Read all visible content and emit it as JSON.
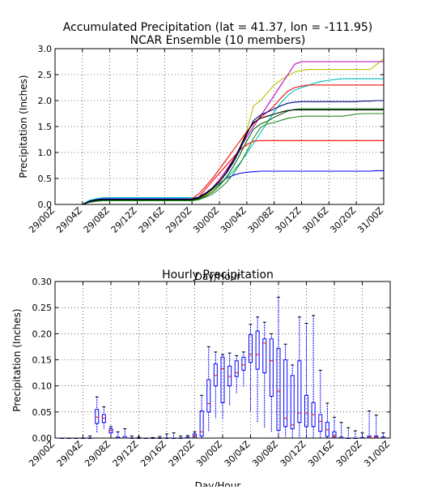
{
  "colors": {
    "background": "#ffffff",
    "frame": "#000000",
    "grid": "#000000",
    "box": "#0000ff",
    "median": "#ff0000"
  },
  "chart_data": [
    {
      "type": "line",
      "title": "Accumulated Precipitation (lat = 41.37, lon = -111.95)",
      "subtitle": "NCAR Ensemble (10 members)",
      "xlabel": "Day/Hour",
      "ylabel": "Precipitation (Inches)",
      "xlim": [
        0,
        48
      ],
      "ylim": [
        0,
        3.0
      ],
      "yticks": [
        "0.0",
        "0.5",
        "1.0",
        "1.5",
        "2.0",
        "2.5",
        "3.0"
      ],
      "xticks": [
        "29/00Z",
        "29/04Z",
        "29/08Z",
        "29/12Z",
        "29/16Z",
        "29/20Z",
        "30/00Z",
        "30/04Z",
        "30/08Z",
        "30/12Z",
        "30/16Z",
        "30/20Z",
        "31/00Z"
      ],
      "x": [
        0,
        3,
        4,
        5,
        6,
        7,
        8,
        9,
        10,
        11,
        12,
        13,
        14,
        15,
        16,
        17,
        18,
        19,
        20,
        21,
        22,
        23,
        24,
        25,
        26,
        27,
        28,
        29,
        30,
        31,
        32,
        33,
        34,
        35,
        36,
        37,
        38,
        39,
        40,
        41,
        42,
        43,
        44,
        45,
        46,
        47,
        48
      ],
      "grid": true,
      "series": [
        {
          "color": "#0000ff",
          "values": [
            0,
            0,
            0,
            0.07,
            0.1,
            0.11,
            0.11,
            0.11,
            0.11,
            0.11,
            0.11,
            0.11,
            0.11,
            0.11,
            0.11,
            0.11,
            0.11,
            0.11,
            0.11,
            0.14,
            0.22,
            0.3,
            0.4,
            0.5,
            0.56,
            0.6,
            0.62,
            0.63,
            0.64,
            0.64,
            0.64,
            0.64,
            0.64,
            0.64,
            0.64,
            0.64,
            0.64,
            0.64,
            0.64,
            0.64,
            0.64,
            0.64,
            0.64,
            0.64,
            0.64,
            0.65,
            0.65
          ]
        },
        {
          "color": "#00bfbf",
          "values": [
            0,
            0,
            0,
            0.08,
            0.11,
            0.13,
            0.13,
            0.13,
            0.13,
            0.13,
            0.13,
            0.13,
            0.13,
            0.13,
            0.13,
            0.13,
            0.13,
            0.13,
            0.13,
            0.14,
            0.2,
            0.28,
            0.38,
            0.5,
            0.64,
            0.8,
            0.98,
            1.18,
            1.38,
            1.58,
            1.78,
            1.96,
            2.1,
            2.2,
            2.25,
            2.29,
            2.34,
            2.37,
            2.39,
            2.41,
            2.42,
            2.42,
            2.42,
            2.42,
            2.42,
            2.42,
            2.42
          ]
        },
        {
          "color": "#bfbf00",
          "values": [
            0,
            0,
            0,
            0.05,
            0.08,
            0.09,
            0.09,
            0.09,
            0.09,
            0.09,
            0.09,
            0.09,
            0.09,
            0.09,
            0.09,
            0.09,
            0.09,
            0.09,
            0.09,
            0.12,
            0.18,
            0.28,
            0.42,
            0.6,
            0.82,
            1.1,
            1.42,
            1.9,
            2.0,
            2.15,
            2.3,
            2.4,
            2.48,
            2.55,
            2.58,
            2.6,
            2.6,
            2.6,
            2.6,
            2.6,
            2.6,
            2.6,
            2.6,
            2.6,
            2.6,
            2.7,
            2.8
          ]
        },
        {
          "color": "#bf00bf",
          "values": [
            0,
            0,
            0,
            0.05,
            0.08,
            0.09,
            0.09,
            0.09,
            0.09,
            0.09,
            0.09,
            0.09,
            0.09,
            0.09,
            0.09,
            0.09,
            0.09,
            0.09,
            0.1,
            0.12,
            0.2,
            0.32,
            0.48,
            0.66,
            0.86,
            1.08,
            1.3,
            1.5,
            1.7,
            1.9,
            2.1,
            2.3,
            2.5,
            2.7,
            2.75,
            2.75,
            2.75,
            2.75,
            2.75,
            2.75,
            2.75,
            2.75,
            2.75,
            2.75,
            2.75,
            2.75,
            2.75
          ]
        },
        {
          "color": "#ff0000",
          "values": [
            0,
            0,
            0,
            0.05,
            0.08,
            0.09,
            0.09,
            0.09,
            0.09,
            0.09,
            0.09,
            0.09,
            0.09,
            0.09,
            0.09,
            0.09,
            0.09,
            0.09,
            0.09,
            0.14,
            0.3,
            0.45,
            0.6,
            0.75,
            0.9,
            1.05,
            1.15,
            1.22,
            1.23,
            1.23,
            1.23,
            1.23,
            1.23,
            1.23,
            1.23,
            1.23,
            1.23,
            1.23,
            1.23,
            1.23,
            1.23,
            1.23,
            1.23,
            1.23,
            1.23,
            1.23,
            1.23
          ]
        },
        {
          "color": "#e81010",
          "values": [
            0,
            0,
            0,
            0.06,
            0.09,
            0.1,
            0.1,
            0.1,
            0.1,
            0.1,
            0.1,
            0.1,
            0.1,
            0.1,
            0.1,
            0.1,
            0.1,
            0.1,
            0.11,
            0.2,
            0.35,
            0.5,
            0.68,
            0.86,
            1.04,
            1.22,
            1.4,
            1.56,
            1.68,
            1.78,
            1.9,
            2.05,
            2.18,
            2.25,
            2.28,
            2.3,
            2.3,
            2.3,
            2.3,
            2.3,
            2.3,
            2.3,
            2.3,
            2.3,
            2.3,
            2.3,
            2.3
          ]
        },
        {
          "color": "#006400",
          "values": [
            0,
            0,
            0,
            0.05,
            0.07,
            0.08,
            0.08,
            0.08,
            0.08,
            0.08,
            0.08,
            0.08,
            0.08,
            0.08,
            0.08,
            0.08,
            0.08,
            0.08,
            0.08,
            0.1,
            0.16,
            0.24,
            0.36,
            0.52,
            0.72,
            0.96,
            1.22,
            1.45,
            1.55,
            1.6,
            1.68,
            1.74,
            1.8,
            1.83,
            1.84,
            1.84,
            1.84,
            1.84,
            1.84,
            1.84,
            1.84,
            1.84,
            1.84,
            1.84,
            1.84,
            1.84,
            1.84
          ]
        },
        {
          "color": "#228b22",
          "values": [
            0,
            0,
            0,
            0.04,
            0.06,
            0.07,
            0.07,
            0.07,
            0.07,
            0.07,
            0.07,
            0.07,
            0.07,
            0.07,
            0.07,
            0.07,
            0.07,
            0.07,
            0.07,
            0.09,
            0.14,
            0.2,
            0.3,
            0.42,
            0.58,
            0.78,
            1.02,
            1.28,
            1.48,
            1.55,
            1.58,
            1.62,
            1.66,
            1.68,
            1.7,
            1.7,
            1.7,
            1.7,
            1.7,
            1.7,
            1.7,
            1.72,
            1.74,
            1.75,
            1.75,
            1.75,
            1.75
          ]
        },
        {
          "color": "#000080",
          "values": [
            0,
            0,
            0,
            0.06,
            0.09,
            0.1,
            0.1,
            0.1,
            0.1,
            0.1,
            0.1,
            0.1,
            0.1,
            0.1,
            0.1,
            0.1,
            0.1,
            0.1,
            0.1,
            0.14,
            0.22,
            0.32,
            0.44,
            0.6,
            0.8,
            1.05,
            1.35,
            1.62,
            1.72,
            1.78,
            1.84,
            1.9,
            1.95,
            1.97,
            1.98,
            1.98,
            1.98,
            1.98,
            1.98,
            1.98,
            1.98,
            1.98,
            1.98,
            1.99,
            1.99,
            2.0,
            2.0
          ]
        },
        {
          "color": "#000000",
          "values": [
            0,
            0,
            0,
            0.05,
            0.08,
            0.09,
            0.09,
            0.09,
            0.09,
            0.09,
            0.09,
            0.09,
            0.09,
            0.09,
            0.09,
            0.09,
            0.09,
            0.09,
            0.09,
            0.12,
            0.2,
            0.3,
            0.44,
            0.62,
            0.84,
            1.1,
            1.38,
            1.58,
            1.66,
            1.7,
            1.74,
            1.78,
            1.81,
            1.82,
            1.82,
            1.82,
            1.82,
            1.82,
            1.82,
            1.82,
            1.82,
            1.82,
            1.82,
            1.82,
            1.82,
            1.82,
            1.82
          ]
        }
      ]
    },
    {
      "type": "box",
      "title": "Hourly Precipitation",
      "xlabel": "Day/Hour",
      "ylabel": "Precipitation (Inches)",
      "xlim": [
        0,
        48
      ],
      "ylim": [
        0,
        0.3
      ],
      "yticks": [
        "0.00",
        "0.05",
        "0.10",
        "0.15",
        "0.20",
        "0.25",
        "0.30"
      ],
      "xticks": [
        "29/00Z",
        "29/04Z",
        "29/08Z",
        "29/12Z",
        "29/16Z",
        "29/20Z",
        "30/00Z",
        "30/04Z",
        "30/08Z",
        "30/12Z",
        "30/16Z",
        "30/20Z",
        "31/00Z"
      ],
      "grid": true,
      "boxes": [
        {
          "x": 1,
          "min": 0,
          "q1": 0,
          "median": 0,
          "q3": 0,
          "max": 0
        },
        {
          "x": 2,
          "min": 0,
          "q1": 0,
          "median": 0,
          "q3": 0,
          "max": 0
        },
        {
          "x": 3,
          "min": 0,
          "q1": 0,
          "median": 0,
          "q3": 0,
          "max": 0
        },
        {
          "x": 4,
          "min": 0,
          "q1": 0,
          "median": 0,
          "q3": 0,
          "max": 0
        },
        {
          "x": 5,
          "min": 0,
          "q1": 0,
          "median": 0,
          "q3": 0,
          "max": 0.004
        },
        {
          "x": 6,
          "min": 0.01,
          "q1": 0.028,
          "median": 0.04,
          "q3": 0.055,
          "max": 0.079
        },
        {
          "x": 7,
          "min": 0.018,
          "q1": 0.03,
          "median": 0.038,
          "q3": 0.045,
          "max": 0.06
        },
        {
          "x": 8,
          "min": 0.006,
          "q1": 0.01,
          "median": 0.015,
          "q3": 0.018,
          "max": 0.022
        },
        {
          "x": 9,
          "min": 0,
          "q1": 0,
          "median": 0,
          "q3": 0.002,
          "max": 0.012
        },
        {
          "x": 10,
          "min": 0,
          "q1": 0,
          "median": 0,
          "q3": 0.003,
          "max": 0.018
        },
        {
          "x": 11,
          "min": 0,
          "q1": 0,
          "median": 0,
          "q3": 0,
          "max": 0.004
        },
        {
          "x": 12,
          "min": 0,
          "q1": 0,
          "median": 0,
          "q3": 0,
          "max": 0.002
        },
        {
          "x": 13,
          "min": 0,
          "q1": 0,
          "median": 0,
          "q3": 0,
          "max": 0
        },
        {
          "x": 14,
          "min": 0,
          "q1": 0,
          "median": 0,
          "q3": 0,
          "max": 0.001
        },
        {
          "x": 15,
          "min": 0,
          "q1": 0,
          "median": 0,
          "q3": 0,
          "max": 0.003
        },
        {
          "x": 16,
          "min": 0,
          "q1": 0,
          "median": 0,
          "q3": 0,
          "max": 0.008
        },
        {
          "x": 17,
          "min": 0,
          "q1": 0,
          "median": 0,
          "q3": 0,
          "max": 0.01
        },
        {
          "x": 18,
          "min": 0,
          "q1": 0,
          "median": 0,
          "q3": 0,
          "max": 0.004
        },
        {
          "x": 19,
          "min": 0,
          "q1": 0,
          "median": 0,
          "q3": 0.002,
          "max": 0.005
        },
        {
          "x": 20,
          "min": 0,
          "q1": 0,
          "median": 0.004,
          "q3": 0.008,
          "max": 0.012
        },
        {
          "x": 21,
          "min": 0,
          "q1": 0.004,
          "median": 0.012,
          "q3": 0.052,
          "max": 0.082
        },
        {
          "x": 22,
          "min": 0.012,
          "q1": 0.05,
          "median": 0.066,
          "q3": 0.112,
          "max": 0.175
        },
        {
          "x": 23,
          "min": 0.038,
          "q1": 0.1,
          "median": 0.12,
          "q3": 0.142,
          "max": 0.165
        },
        {
          "x": 24,
          "min": 0.035,
          "q1": 0.068,
          "median": 0.133,
          "q3": 0.155,
          "max": 0.16
        },
        {
          "x": 25,
          "min": 0.062,
          "q1": 0.1,
          "median": 0.118,
          "q3": 0.138,
          "max": 0.163
        },
        {
          "x": 26,
          "min": 0.085,
          "q1": 0.118,
          "median": 0.125,
          "q3": 0.148,
          "max": 0.158
        },
        {
          "x": 27,
          "min": 0.098,
          "q1": 0.13,
          "median": 0.14,
          "q3": 0.155,
          "max": 0.165
        },
        {
          "x": 28,
          "min": 0.05,
          "q1": 0.145,
          "median": 0.16,
          "q3": 0.198,
          "max": 0.218
        },
        {
          "x": 29,
          "min": 0.03,
          "q1": 0.132,
          "median": 0.16,
          "q3": 0.205,
          "max": 0.232
        },
        {
          "x": 30,
          "min": 0.02,
          "q1": 0.125,
          "median": 0.182,
          "q3": 0.19,
          "max": 0.222
        },
        {
          "x": 31,
          "min": 0.012,
          "q1": 0.08,
          "median": 0.148,
          "q3": 0.19,
          "max": 0.2
        },
        {
          "x": 32,
          "min": 0.003,
          "q1": 0.015,
          "median": 0.09,
          "q3": 0.172,
          "max": 0.27
        },
        {
          "x": 33,
          "min": 0.002,
          "q1": 0.022,
          "median": 0.038,
          "q3": 0.15,
          "max": 0.18
        },
        {
          "x": 34,
          "min": 0.001,
          "q1": 0.018,
          "median": 0.025,
          "q3": 0.12,
          "max": 0.14
        },
        {
          "x": 35,
          "min": 0.001,
          "q1": 0.03,
          "median": 0.048,
          "q3": 0.148,
          "max": 0.232
        },
        {
          "x": 36,
          "min": 0.001,
          "q1": 0.022,
          "median": 0.048,
          "q3": 0.082,
          "max": 0.22
        },
        {
          "x": 37,
          "min": 0.001,
          "q1": 0.022,
          "median": 0.045,
          "q3": 0.068,
          "max": 0.235
        },
        {
          "x": 38,
          "min": 0.001,
          "q1": 0.013,
          "median": 0.032,
          "q3": 0.045,
          "max": 0.13
        },
        {
          "x": 39,
          "min": 0,
          "q1": 0.003,
          "median": 0.016,
          "q3": 0.03,
          "max": 0.067
        },
        {
          "x": 40,
          "min": 0,
          "q1": 0,
          "median": 0.003,
          "q3": 0.012,
          "max": 0.04
        },
        {
          "x": 41,
          "min": 0,
          "q1": 0,
          "median": 0,
          "q3": 0.002,
          "max": 0.03
        },
        {
          "x": 42,
          "min": 0,
          "q1": 0,
          "median": 0,
          "q3": 0,
          "max": 0.02
        },
        {
          "x": 43,
          "min": 0,
          "q1": 0,
          "median": 0,
          "q3": 0,
          "max": 0.014
        },
        {
          "x": 44,
          "min": 0,
          "q1": 0,
          "median": 0,
          "q3": 0.001,
          "max": 0.01
        },
        {
          "x": 45,
          "min": 0,
          "q1": 0,
          "median": 0.002,
          "q3": 0.004,
          "max": 0.052
        },
        {
          "x": 46,
          "min": 0,
          "q1": 0,
          "median": 0.002,
          "q3": 0.004,
          "max": 0.044
        },
        {
          "x": 47,
          "min": 0,
          "q1": 0,
          "median": 0,
          "q3": 0.002,
          "max": 0.01
        }
      ]
    }
  ]
}
